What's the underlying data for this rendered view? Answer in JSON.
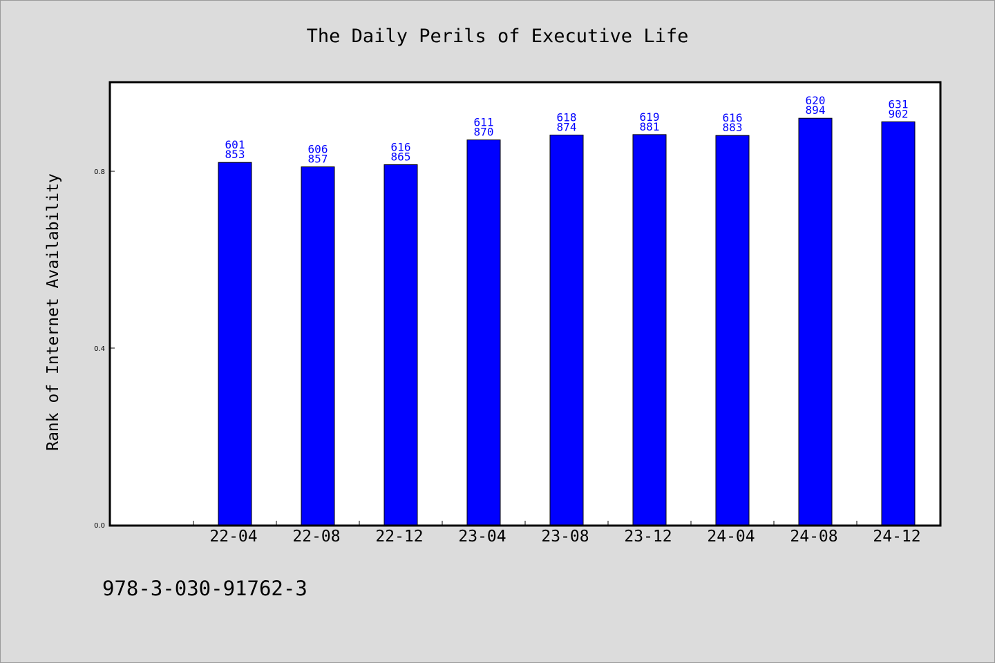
{
  "chart_data": {
    "type": "bar",
    "title": "The Daily Perils of Executive Life",
    "xlabel": "",
    "ylabel": "Rank of Internet Availability",
    "categories": [
      "22-04",
      "22-08",
      "22-12",
      "23-04",
      "23-08",
      "23-12",
      "24-04",
      "24-08",
      "24-12"
    ],
    "values": [
      0.82,
      0.81,
      0.815,
      0.871,
      0.882,
      0.883,
      0.881,
      0.92,
      0.912
    ],
    "label_top": [
      "601",
      "606",
      "616",
      "611",
      "618",
      "619",
      "616",
      "620",
      "631"
    ],
    "label_bottom": [
      "853",
      "857",
      "865",
      "870",
      "874",
      "881",
      "883",
      "894",
      "902"
    ],
    "ylim": [
      0,
      1.0
    ],
    "xlim_slots": 10,
    "yticks": [
      "0.0",
      "0.4",
      "0.8"
    ],
    "grid": false,
    "bar_color": "#0000ff",
    "label_color": "#0000ff"
  },
  "footer": {
    "isbn": "978-3-030-91762-3"
  },
  "colors": {
    "background": "#dcdcdc",
    "plot_background": "#ffffff"
  }
}
